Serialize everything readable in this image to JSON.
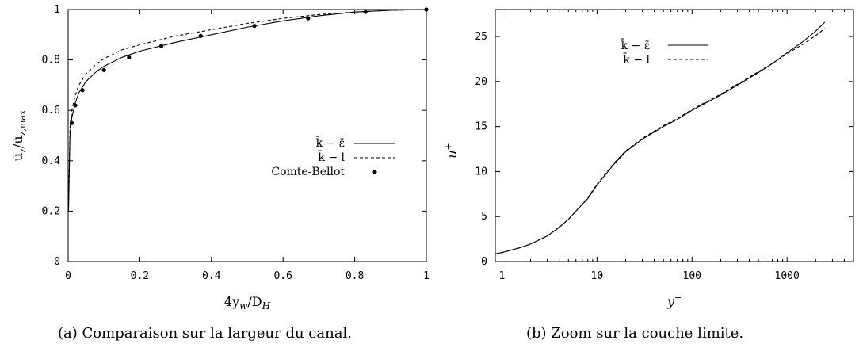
{
  "chart_data": [
    {
      "type": "line",
      "xlabel": "4y_w/D_H",
      "ylabel": "ū_z/ū_z,max",
      "xlim": [
        0,
        1
      ],
      "ylim": [
        0,
        1
      ],
      "x_ticks": [
        "0",
        "0.2",
        "0.4",
        "0.6",
        "0.8",
        "1"
      ],
      "y_ticks": [
        "0",
        "0.2",
        "0.4",
        "0.6",
        "0.8",
        "1"
      ],
      "grid": false,
      "legend_position": "middle-right",
      "series": [
        {
          "name": "k̄ − ε̄",
          "style": "solid",
          "x": [
            0.001,
            0.005,
            0.01,
            0.02,
            0.03,
            0.05,
            0.08,
            0.1,
            0.15,
            0.2,
            0.3,
            0.4,
            0.5,
            0.6,
            0.7,
            0.8,
            0.9,
            1.0
          ],
          "y": [
            0.2,
            0.5,
            0.57,
            0.63,
            0.67,
            0.715,
            0.755,
            0.775,
            0.81,
            0.835,
            0.87,
            0.9,
            0.93,
            0.955,
            0.975,
            0.99,
            0.997,
            1.0
          ]
        },
        {
          "name": "k̄ − l",
          "style": "dashed",
          "x": [
            0.001,
            0.005,
            0.01,
            0.02,
            0.03,
            0.05,
            0.08,
            0.1,
            0.15,
            0.2,
            0.3,
            0.4,
            0.5,
            0.6,
            0.7,
            0.8,
            0.9,
            1.0
          ],
          "y": [
            0.2,
            0.53,
            0.6,
            0.66,
            0.7,
            0.745,
            0.785,
            0.805,
            0.84,
            0.86,
            0.895,
            0.92,
            0.945,
            0.965,
            0.98,
            0.99,
            0.997,
            1.0
          ]
        },
        {
          "name": "Comte-Bellot",
          "style": "points",
          "x": [
            0.01,
            0.02,
            0.04,
            0.1,
            0.17,
            0.26,
            0.37,
            0.52,
            0.67,
            0.83,
            1.0
          ],
          "y": [
            0.55,
            0.62,
            0.68,
            0.76,
            0.81,
            0.855,
            0.895,
            0.935,
            0.965,
            0.99,
            1.0
          ]
        }
      ],
      "caption": "(a)  Comparaison sur la largeur du canal."
    },
    {
      "type": "line",
      "xlabel": "y+",
      "ylabel": "u+",
      "xscale": "log",
      "xlim": [
        0.85,
        5000
      ],
      "ylim": [
        0,
        28
      ],
      "x_ticks": [
        "1",
        "10",
        "100",
        "1000"
      ],
      "y_ticks": [
        "0",
        "5",
        "10",
        "15",
        "20",
        "25"
      ],
      "grid": false,
      "legend_position": "top-left",
      "series": [
        {
          "name": "k̄ − ε̄",
          "style": "solid",
          "x": [
            0.85,
            1,
            1.5,
            2,
            3,
            4,
            5,
            6,
            8,
            10,
            15,
            20,
            30,
            50,
            70,
            100,
            200,
            300,
            500,
            700,
            1000,
            1500,
            2000,
            2500
          ],
          "y": [
            0.85,
            1.0,
            1.5,
            1.95,
            2.85,
            3.8,
            4.7,
            5.6,
            7.0,
            8.5,
            10.8,
            12.2,
            13.6,
            15.0,
            15.8,
            16.8,
            18.5,
            19.6,
            21.0,
            22.0,
            23.2,
            24.5,
            25.6,
            26.6
          ]
        },
        {
          "name": "k̄ − l",
          "style": "dashed",
          "x": [
            0.85,
            1,
            1.5,
            2,
            3,
            4,
            5,
            6,
            8,
            10,
            15,
            20,
            30,
            50,
            70,
            100,
            200,
            300,
            500,
            700,
            1000,
            1500,
            2000,
            2500
          ],
          "y": [
            0.85,
            1.0,
            1.5,
            1.95,
            2.85,
            3.8,
            4.7,
            5.6,
            7.1,
            8.6,
            10.9,
            12.3,
            13.7,
            15.1,
            15.9,
            16.9,
            18.6,
            19.7,
            21.1,
            22.0,
            23.1,
            24.2,
            25.1,
            25.9
          ]
        }
      ],
      "caption": "(b)  Zoom sur la couche limite."
    }
  ]
}
